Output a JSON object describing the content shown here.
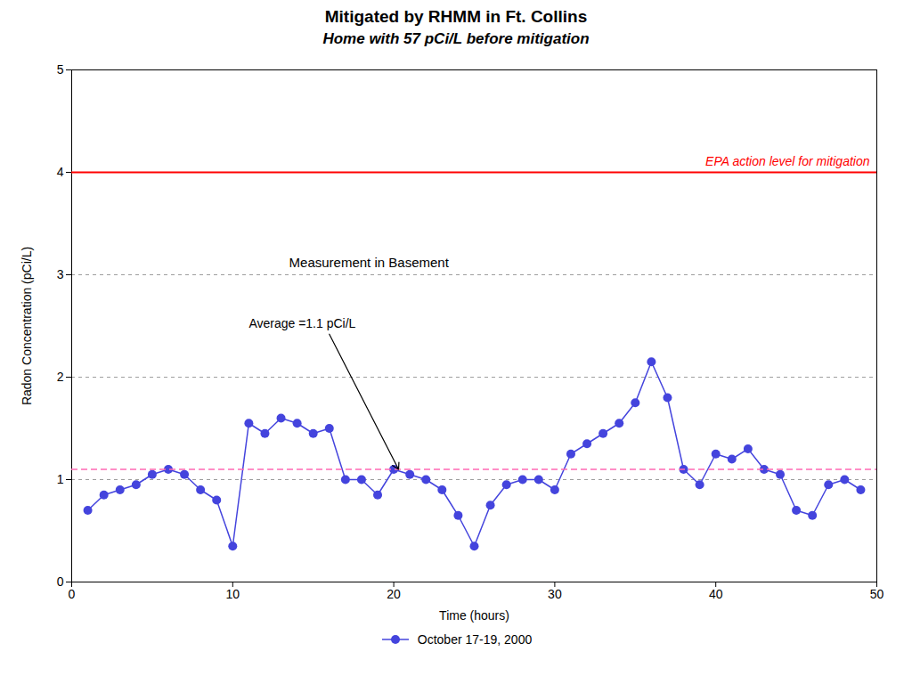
{
  "chart_data": {
    "type": "line",
    "title": "Mitigated by RHMM in Ft. Collins",
    "subtitle": "Home with 57 pCi/L before mitigation",
    "x_label": "Time (hours)",
    "y_label": "Radon Concentration (pCi/L)",
    "x": [
      1,
      2,
      3,
      4,
      5,
      6,
      7,
      8,
      9,
      10,
      11,
      12,
      13,
      14,
      15,
      16,
      17,
      18,
      19,
      20,
      21,
      22,
      23,
      24,
      25,
      26,
      27,
      28,
      29,
      30,
      31,
      32,
      33,
      34,
      35,
      36,
      37,
      38,
      39,
      40,
      41,
      42,
      43,
      44,
      45,
      46,
      47,
      48,
      49
    ],
    "series": [
      {
        "name": "October 17-19, 2000",
        "color": "#4444DD",
        "marker": "o",
        "values": [
          0.7,
          0.85,
          0.9,
          0.95,
          1.05,
          1.1,
          1.05,
          0.9,
          0.8,
          0.35,
          1.55,
          1.45,
          1.6,
          1.55,
          1.45,
          1.5,
          1.0,
          1.0,
          0.85,
          1.1,
          1.05,
          1.0,
          0.9,
          0.65,
          0.35,
          0.75,
          0.95,
          1.0,
          1.0,
          0.9,
          1.25,
          1.35,
          1.45,
          1.55,
          1.75,
          2.15,
          1.8,
          1.1,
          0.95,
          1.25,
          1.2,
          1.3,
          1.1,
          1.05,
          0.7,
          0.65,
          0.95,
          1.0,
          0.9
        ]
      }
    ],
    "reference_lines": [
      {
        "y": 4.0,
        "label": "EPA action level for mitigation",
        "color": "#FF0000",
        "line_style": "solid"
      },
      {
        "y": 1.1,
        "color": "#FF69B4",
        "line_style": "dashed"
      }
    ],
    "annotations": [
      {
        "text": "Measurement in Basement"
      },
      {
        "text": "Average =1.1 pCi/L",
        "arrow_to": 1.1
      }
    ],
    "xlim": [
      0,
      50
    ],
    "ylim": [
      0,
      5
    ],
    "xticks": [
      0,
      10,
      20,
      30,
      40,
      50
    ],
    "yticks": [
      0,
      1,
      2,
      3,
      4,
      5
    ],
    "grid": true,
    "legend": "bottom"
  }
}
